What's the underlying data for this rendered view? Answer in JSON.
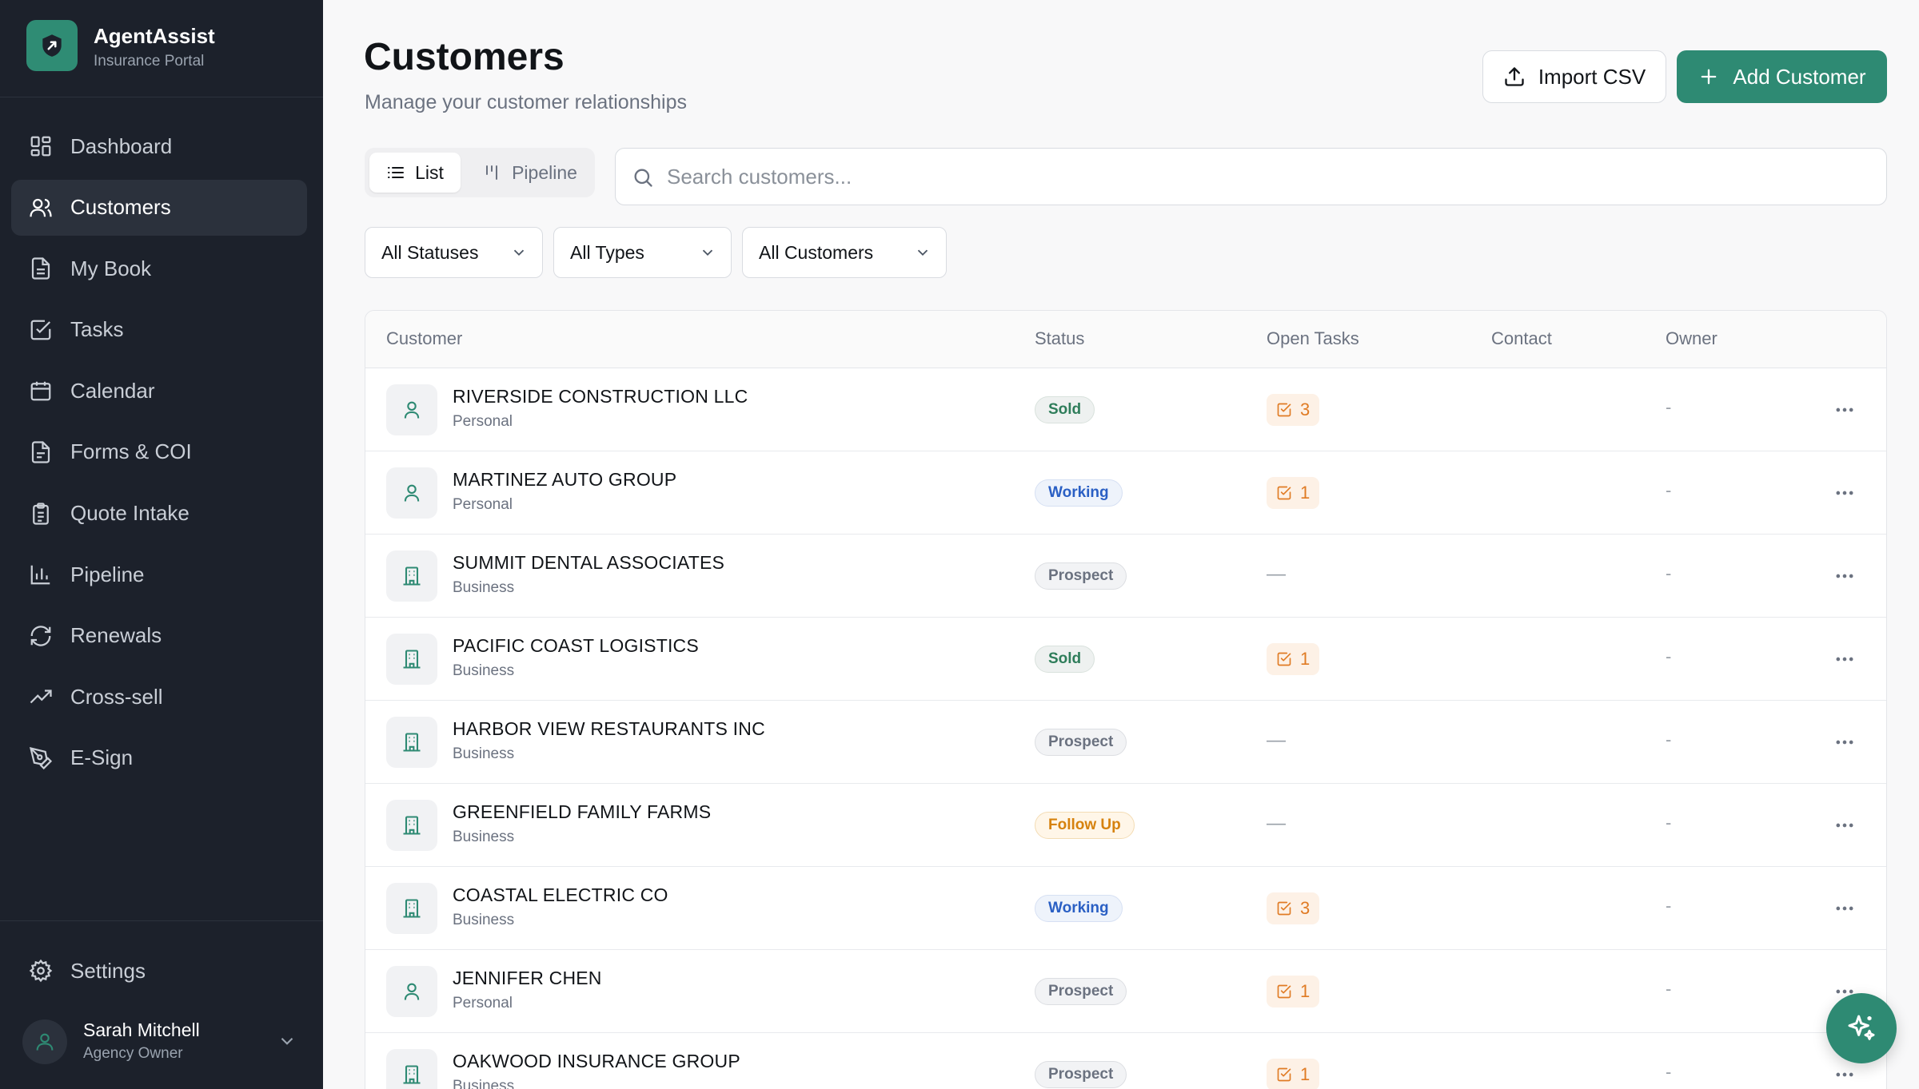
{
  "app": {
    "name": "AgentAssist",
    "subtitle": "Insurance Portal"
  },
  "sidebar": {
    "items": [
      {
        "label": "Dashboard",
        "icon": "dashboard-icon",
        "active": false
      },
      {
        "label": "Customers",
        "icon": "users-icon",
        "active": true
      },
      {
        "label": "My Book",
        "icon": "book-icon",
        "active": false
      },
      {
        "label": "Tasks",
        "icon": "tasks-icon",
        "active": false
      },
      {
        "label": "Calendar",
        "icon": "calendar-icon",
        "active": false
      },
      {
        "label": "Forms & COI",
        "icon": "file-icon",
        "active": false
      },
      {
        "label": "Quote Intake",
        "icon": "clipboard-icon",
        "active": false
      },
      {
        "label": "Pipeline",
        "icon": "bar-chart-icon",
        "active": false
      },
      {
        "label": "Renewals",
        "icon": "refresh-icon",
        "active": false
      },
      {
        "label": "Cross-sell",
        "icon": "trending-up-icon",
        "active": false
      },
      {
        "label": "E-Sign",
        "icon": "pen-icon",
        "active": false
      }
    ],
    "settings_label": "Settings",
    "user": {
      "name": "Sarah Mitchell",
      "role": "Agency Owner"
    }
  },
  "header": {
    "title": "Customers",
    "subtitle": "Manage your customer relationships",
    "import_label": "Import CSV",
    "add_label": "Add Customer"
  },
  "view_toggle": {
    "list_label": "List",
    "pipeline_label": "Pipeline",
    "selected": "List"
  },
  "search": {
    "placeholder": "Search customers..."
  },
  "filters": {
    "status": "All Statuses",
    "type": "All Types",
    "customers": "All Customers"
  },
  "table": {
    "columns": [
      "Customer",
      "Status",
      "Open Tasks",
      "Contact",
      "Owner"
    ],
    "rows": [
      {
        "name": "RIVERSIDE CONSTRUCTION LLC",
        "type": "Personal",
        "status": "Sold",
        "tasks": "3",
        "owner": "-"
      },
      {
        "name": "MARTINEZ AUTO GROUP",
        "type": "Personal",
        "status": "Working",
        "tasks": "1",
        "owner": "-"
      },
      {
        "name": "SUMMIT DENTAL ASSOCIATES",
        "type": "Business",
        "status": "Prospect",
        "tasks": "—",
        "owner": "-"
      },
      {
        "name": "PACIFIC COAST LOGISTICS",
        "type": "Business",
        "status": "Sold",
        "tasks": "1",
        "owner": "-"
      },
      {
        "name": "HARBOR VIEW RESTAURANTS INC",
        "type": "Business",
        "status": "Prospect",
        "tasks": "—",
        "owner": "-"
      },
      {
        "name": "GREENFIELD FAMILY FARMS",
        "type": "Business",
        "status": "Follow Up",
        "tasks": "—",
        "owner": "-"
      },
      {
        "name": "COASTAL ELECTRIC CO",
        "type": "Business",
        "status": "Working",
        "tasks": "3",
        "owner": "-"
      },
      {
        "name": "JENNIFER CHEN",
        "type": "Personal",
        "status": "Prospect",
        "tasks": "1",
        "owner": "-"
      },
      {
        "name": "OAKWOOD INSURANCE GROUP",
        "type": "Business",
        "status": "Prospect",
        "tasks": "1",
        "owner": "-"
      }
    ]
  },
  "colors": {
    "sidebar_bg": "#1c212b",
    "accent": "#2e8a73",
    "sold": "#2e7d5a",
    "working": "#2a5fc4",
    "prospect": "#6b7280",
    "follow_up": "#d6820e",
    "tasks": "#e07b24"
  }
}
